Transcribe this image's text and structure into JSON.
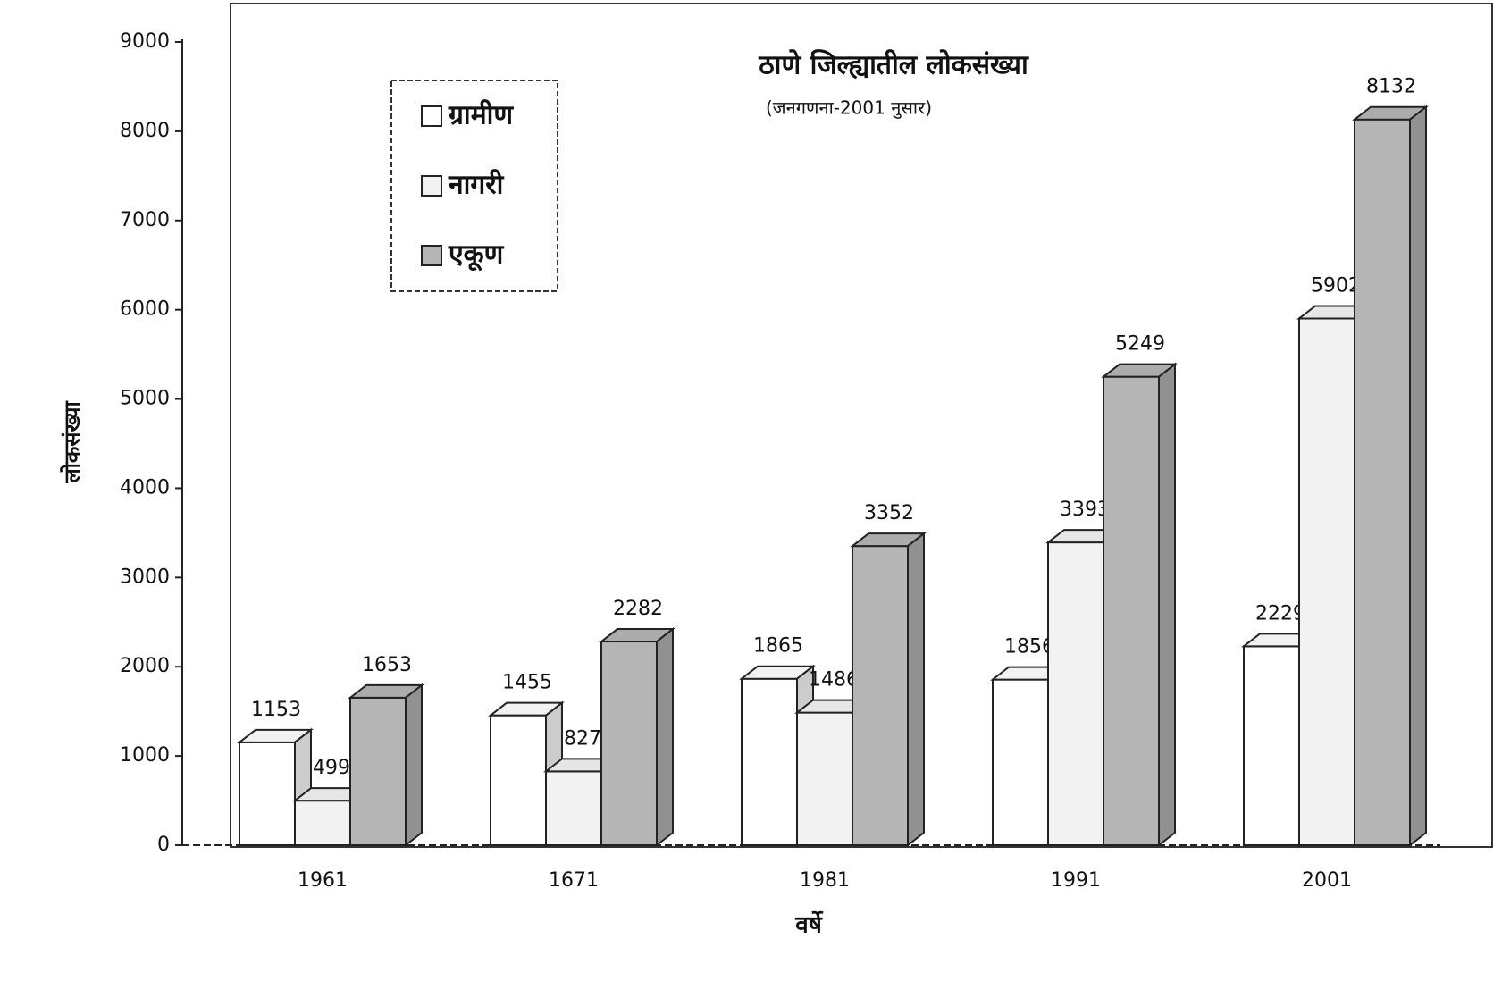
{
  "chart_data": {
    "type": "bar3d",
    "title": "ठाणे जिल्ह्यातील लोकसंख्या",
    "subtitle": "(जनगणना-2001 नुसार)",
    "y_label": "लोकसंख्या",
    "x_label": "वर्षे",
    "categories": [
      "1961",
      "1671",
      "1981",
      "1991",
      "2001"
    ],
    "series": [
      {
        "name": "ग्रामीण",
        "color": "#ffffff",
        "values": [
          1153,
          1455,
          1865,
          1856,
          2229
        ]
      },
      {
        "name": "नागरी",
        "color": "#f2f2f2",
        "values": [
          499,
          827,
          1486,
          3393,
          5902
        ]
      },
      {
        "name": "एकूण",
        "color": "#b5b5b5",
        "values": [
          1653,
          2282,
          3352,
          5249,
          8132
        ]
      }
    ],
    "ylim": [
      0,
      9000
    ],
    "yticks": [
      0,
      1000,
      2000,
      3000,
      4000,
      5000,
      6000,
      7000,
      8000,
      9000
    ],
    "legend": "top-left"
  }
}
